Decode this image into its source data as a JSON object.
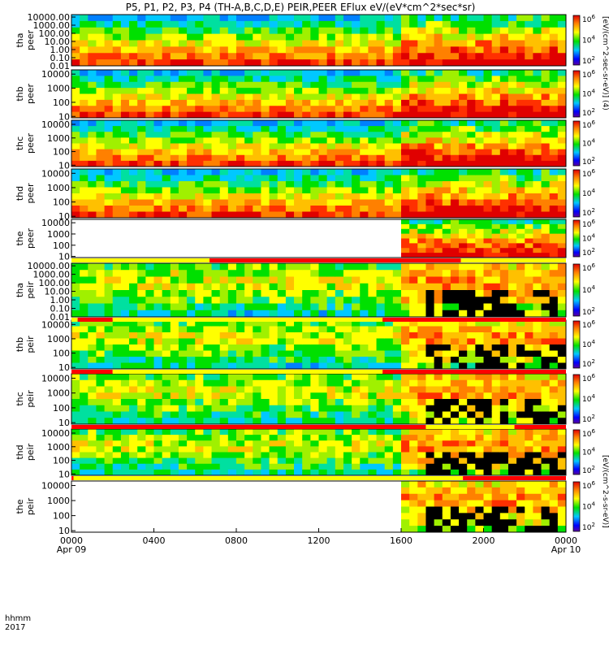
{
  "chart_data": {
    "type": "heatmap",
    "title": "P5, P1, P2, P3, P4 (TH-A,B,C,D,E) PEIR,PEER EFlux eV/(eV*cm^2*sec*sr)",
    "xaxis": {
      "label_top": "hhmm",
      "label_bottom": "2017",
      "ticks": [
        {
          "t": 0,
          "label": "0000",
          "sub": "Apr 09"
        },
        {
          "t": 4,
          "label": "0400",
          "sub": ""
        },
        {
          "t": 8,
          "label": "0800",
          "sub": ""
        },
        {
          "t": 12,
          "label": "1200",
          "sub": ""
        },
        {
          "t": 16,
          "label": "1600",
          "sub": ""
        },
        {
          "t": 20,
          "label": "2000",
          "sub": ""
        },
        {
          "t": 24,
          "label": "0000",
          "sub": "Apr 10"
        }
      ],
      "range_hours": [
        0,
        24
      ]
    },
    "colorbar_ticks": [
      "10^6",
      "10^4",
      "10^2"
    ],
    "colorbar_title_electron": "[eV/(cm^2-sec-sr-eV)]  (4)",
    "colorbar_title_ion": "[eV/(cm^2-s-sr-eV)]",
    "panels": [
      {
        "probe": "tha",
        "species": "peer",
        "ylabels": [
          "10000.00",
          "1000.00",
          "100.00",
          "10.00",
          "1.00",
          "0.10",
          "0.01"
        ],
        "ymin_exp": -2,
        "ymax_exp": 4.3,
        "scale": "log",
        "data_end": 24,
        "data_start": 0
      },
      {
        "probe": "thb",
        "species": "peer",
        "ylabels": [
          "10000",
          "1000",
          "100",
          "10"
        ],
        "ymin_exp": 0.9,
        "ymax_exp": 4.3,
        "scale": "log",
        "data_end": 24,
        "data_start": 0
      },
      {
        "probe": "thc",
        "species": "peer",
        "ylabels": [
          "10000",
          "1000",
          "100",
          "10"
        ],
        "ymin_exp": 0.9,
        "ymax_exp": 4.3,
        "scale": "log",
        "data_end": 24,
        "data_start": 0
      },
      {
        "probe": "thd",
        "species": "peer",
        "ylabels": [
          "10000",
          "1000",
          "100",
          "10"
        ],
        "ymin_exp": 0.9,
        "ymax_exp": 4.3,
        "scale": "log",
        "data_end": 24,
        "data_start": 0
      },
      {
        "probe": "the",
        "species": "peer",
        "ylabels": [
          "10000",
          "1000",
          "100",
          "10"
        ],
        "ymin_exp": 0.9,
        "ymax_exp": 4.3,
        "scale": "log",
        "data_end": 24,
        "data_start": 16.2
      },
      {
        "probe": "tha",
        "species": "peir",
        "ylabels": [
          "10000.00",
          "1000.00",
          "100.00",
          "10.00",
          "1.00",
          "0.10",
          "0.01"
        ],
        "ymin_exp": -2,
        "ymax_exp": 4.3,
        "scale": "log",
        "data_end": 24,
        "data_start": 0
      },
      {
        "probe": "thb",
        "species": "peir",
        "ylabels": [
          "10000",
          "1000",
          "100",
          "10"
        ],
        "ymin_exp": 0.9,
        "ymax_exp": 4.3,
        "scale": "log",
        "data_end": 24,
        "data_start": 0
      },
      {
        "probe": "thc",
        "species": "peir",
        "ylabels": [
          "10000",
          "1000",
          "100",
          "10"
        ],
        "ymin_exp": 0.9,
        "ymax_exp": 4.3,
        "scale": "log",
        "data_end": 24,
        "data_start": 0
      },
      {
        "probe": "thd",
        "species": "peir",
        "ylabels": [
          "10000",
          "1000",
          "100",
          "10"
        ],
        "ymin_exp": 0.9,
        "ymax_exp": 4.3,
        "scale": "log",
        "data_end": 24,
        "data_start": 0
      },
      {
        "probe": "the",
        "species": "peir",
        "ylabels": [
          "10000",
          "1000",
          "100",
          "10"
        ],
        "ymin_exp": 0.9,
        "ymax_exp": 4.3,
        "scale": "log",
        "data_end": 24,
        "data_start": 16.2
      }
    ],
    "mode_bars": [
      {
        "after_panel": 4,
        "segments": [
          {
            "from": 0,
            "to": 6.7,
            "color": "#ffff00"
          },
          {
            "from": 6.7,
            "to": 18.9,
            "color": "#ff0000"
          },
          {
            "from": 18.9,
            "to": 24,
            "color": "#ffff00"
          }
        ]
      },
      {
        "after_panel": 5,
        "segments": [
          {
            "from": 0,
            "to": 0.3,
            "color": "#ffff00"
          },
          {
            "from": 0.3,
            "to": 2.0,
            "color": "#ff0000"
          },
          {
            "from": 2.0,
            "to": 15.1,
            "color": "#ffff00"
          },
          {
            "from": 15.1,
            "to": 24,
            "color": "#ff0000"
          }
        ]
      },
      {
        "after_panel": 6,
        "segments": [
          {
            "from": 0,
            "to": 2.0,
            "color": "#ff0000"
          },
          {
            "from": 2.0,
            "to": 15.1,
            "color": "#ffff00"
          },
          {
            "from": 15.1,
            "to": 24,
            "color": "#ff0000"
          }
        ]
      },
      {
        "after_panel": 7,
        "segments": [
          {
            "from": 0,
            "to": 17.2,
            "color": "#ff0000"
          },
          {
            "from": 17.2,
            "to": 21.5,
            "color": "#ffff00"
          },
          {
            "from": 21.5,
            "to": 24,
            "color": "#ff0000"
          }
        ]
      },
      {
        "after_panel": 8,
        "segments": [
          {
            "from": 0,
            "to": 0.1,
            "color": "#ff0000"
          },
          {
            "from": 0.1,
            "to": 19.0,
            "color": "#ffff00"
          },
          {
            "from": 19.0,
            "to": 24,
            "color": "#ff0000"
          }
        ]
      }
    ]
  }
}
